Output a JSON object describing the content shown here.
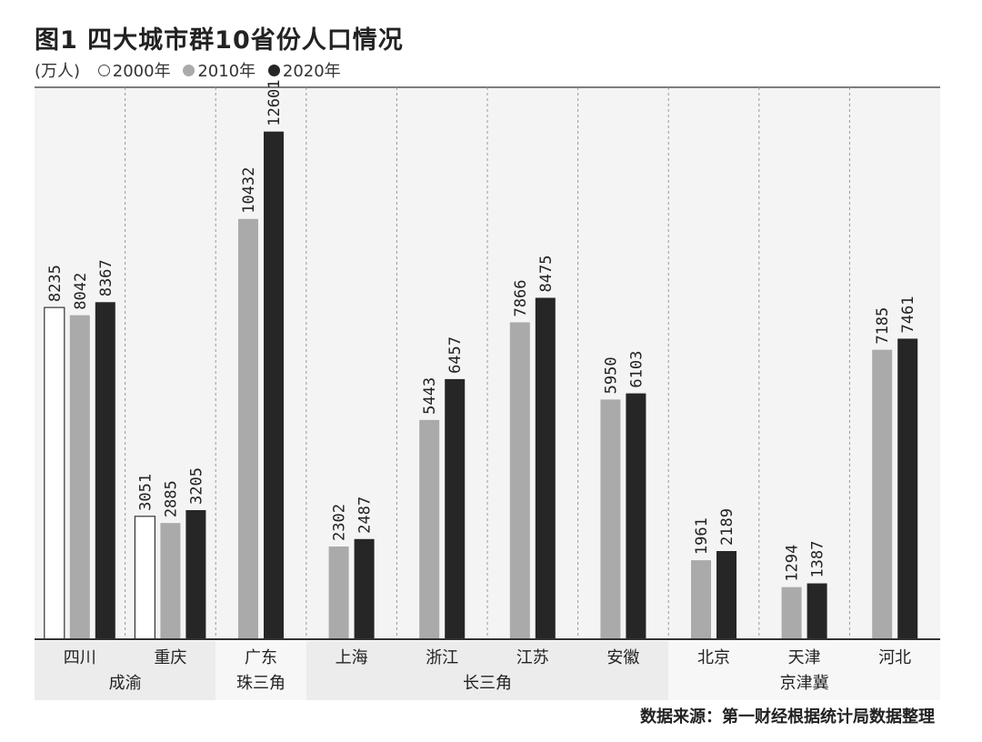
{
  "chart_data": {
    "type": "bar",
    "title": "图1  四大城市群10省份人口情况",
    "unit": "(万人)",
    "categories": [
      "四川",
      "重庆",
      "广东",
      "上海",
      "浙江",
      "江苏",
      "安徽",
      "北京",
      "天津",
      "河北"
    ],
    "groups": [
      {
        "name": "成渝",
        "members": [
          "四川",
          "重庆"
        ]
      },
      {
        "name": "珠三角",
        "members": [
          "广东"
        ]
      },
      {
        "name": "长三角",
        "members": [
          "上海",
          "浙江",
          "江苏",
          "安徽"
        ]
      },
      {
        "name": "京津冀",
        "members": [
          "北京",
          "天津",
          "河北"
        ]
      }
    ],
    "series": [
      {
        "name": "2000年",
        "color": "#ffffff",
        "values": [
          8235,
          3051,
          null,
          null,
          null,
          null,
          null,
          null,
          null,
          null
        ]
      },
      {
        "name": "2010年",
        "color": "#aaaaaa",
        "values": [
          8042,
          2885,
          10432,
          2302,
          5443,
          7866,
          5950,
          1961,
          1294,
          7185
        ]
      },
      {
        "name": "2020年",
        "color": "#262626",
        "values": [
          8367,
          3205,
          12601,
          2487,
          6457,
          8475,
          6103,
          2189,
          1387,
          7461
        ]
      }
    ],
    "ylim": [
      0,
      13700
    ],
    "grid": true,
    "legend": "top-left",
    "source": "数据来源：第一财经根据统计局数据整理"
  }
}
